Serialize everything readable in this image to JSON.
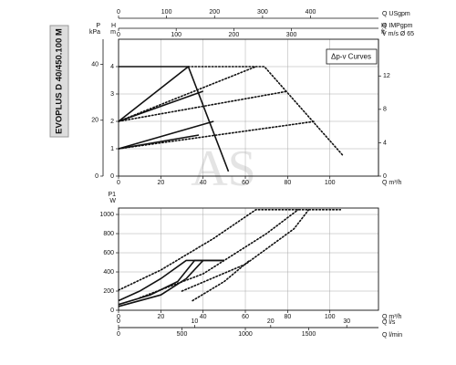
{
  "chart_data": [
    {
      "type": "line",
      "title": "EVOPLUS D 40/450.100 M",
      "watermark": "AS",
      "annotation": "Δp-v Curves",
      "xlabel": "Q m³/h",
      "xlim": [
        0,
        123
      ],
      "xticks": [
        0,
        20,
        40,
        60,
        80,
        100
      ],
      "ylabel": [
        "H",
        "m"
      ],
      "ylim": [
        0,
        5
      ],
      "yticks": [
        0,
        1,
        2,
        3,
        4
      ],
      "grid": true,
      "axes": [
        {
          "side": "top",
          "label": "Q USgpm",
          "lim": [
            0,
            541.5
          ],
          "ticks": [
            0,
            100,
            200,
            300,
            400
          ]
        },
        {
          "side": "top",
          "label": "Q IMPgpm",
          "lim": [
            0,
            451
          ],
          "ticks": [
            0,
            100,
            200,
            300
          ]
        },
        {
          "side": "top",
          "label": "V m/s Ø 65"
        },
        {
          "side": "left",
          "label": [
            "P",
            "kPa"
          ],
          "lim": [
            0,
            49
          ],
          "ticks": [
            0,
            20,
            40
          ]
        },
        {
          "side": "right",
          "label": [
            "H",
            "ft"
          ],
          "lim": [
            0,
            16.4
          ],
          "ticks": [
            0,
            4,
            8,
            12
          ]
        }
      ],
      "series": [
        {
          "style": "solid",
          "color": "#111",
          "x": [
            0,
            33,
            52
          ],
          "values": [
            4,
            4,
            0.17
          ]
        },
        {
          "style": "solid",
          "color": "#111",
          "x": [
            0,
            33
          ],
          "values": [
            2,
            4
          ]
        },
        {
          "style": "solid",
          "color": "#111",
          "x": [
            0,
            40
          ],
          "values": [
            2,
            3.1
          ]
        },
        {
          "style": "solid",
          "color": "#111",
          "x": [
            0,
            45
          ],
          "values": [
            1,
            2
          ]
        },
        {
          "style": "solid",
          "color": "#111",
          "x": [
            0,
            38
          ],
          "values": [
            1,
            1.5
          ]
        },
        {
          "style": "dotted",
          "color": "#111",
          "x": [
            33,
            69,
            106
          ],
          "values": [
            4,
            4,
            0.77
          ]
        },
        {
          "style": "dotted",
          "color": "#111",
          "x": [
            0,
            65
          ],
          "values": [
            2,
            4
          ]
        },
        {
          "style": "dotted",
          "color": "#111",
          "x": [
            0,
            80
          ],
          "values": [
            2,
            3.1
          ]
        },
        {
          "style": "dotted",
          "color": "#111",
          "x": [
            0,
            93
          ],
          "values": [
            1,
            2
          ]
        }
      ]
    },
    {
      "type": "line",
      "xlabel": "Q m³/h",
      "xlim": [
        0,
        123
      ],
      "xticks": [
        0,
        20,
        40,
        60,
        80,
        100
      ],
      "ylabel": [
        "P1",
        "W"
      ],
      "ylim": [
        0,
        1067
      ],
      "yticks": [
        0,
        200,
        400,
        600,
        800,
        1000
      ],
      "grid": true,
      "axes": [
        {
          "side": "bottom",
          "label": "Q l/s",
          "lim": [
            0,
            34.17
          ],
          "ticks": [
            0,
            10,
            20,
            30
          ]
        },
        {
          "side": "bottom",
          "label": "Q l/min",
          "lim": [
            0,
            2050
          ],
          "ticks": [
            0,
            500,
            1000,
            1500
          ]
        }
      ],
      "series": [
        {
          "style": "solid",
          "color": "#111",
          "x": [
            0,
            10,
            20,
            32,
            50
          ],
          "values": [
            100,
            200,
            330,
            520,
            520
          ]
        },
        {
          "style": "solid",
          "color": "#111",
          "x": [
            0,
            15,
            28,
            36,
            50
          ],
          "values": [
            60,
            160,
            300,
            520,
            520
          ]
        },
        {
          "style": "solid",
          "color": "#111",
          "x": [
            0,
            20,
            32,
            40
          ],
          "values": [
            40,
            160,
            330,
            520
          ]
        },
        {
          "style": "dotted",
          "color": "#111",
          "x": [
            0,
            20,
            45,
            65,
            105
          ],
          "values": [
            210,
            420,
            750,
            1050,
            1050
          ]
        },
        {
          "style": "dotted",
          "color": "#111",
          "x": [
            10,
            40,
            70,
            85
          ],
          "values": [
            130,
            380,
            800,
            1050
          ]
        },
        {
          "style": "dotted",
          "color": "#111",
          "x": [
            30,
            60,
            83,
            90
          ],
          "values": [
            200,
            480,
            850,
            1050
          ]
        },
        {
          "style": "dotted",
          "color": "#111",
          "x": [
            35,
            50,
            62
          ],
          "values": [
            100,
            300,
            520
          ]
        }
      ]
    }
  ]
}
